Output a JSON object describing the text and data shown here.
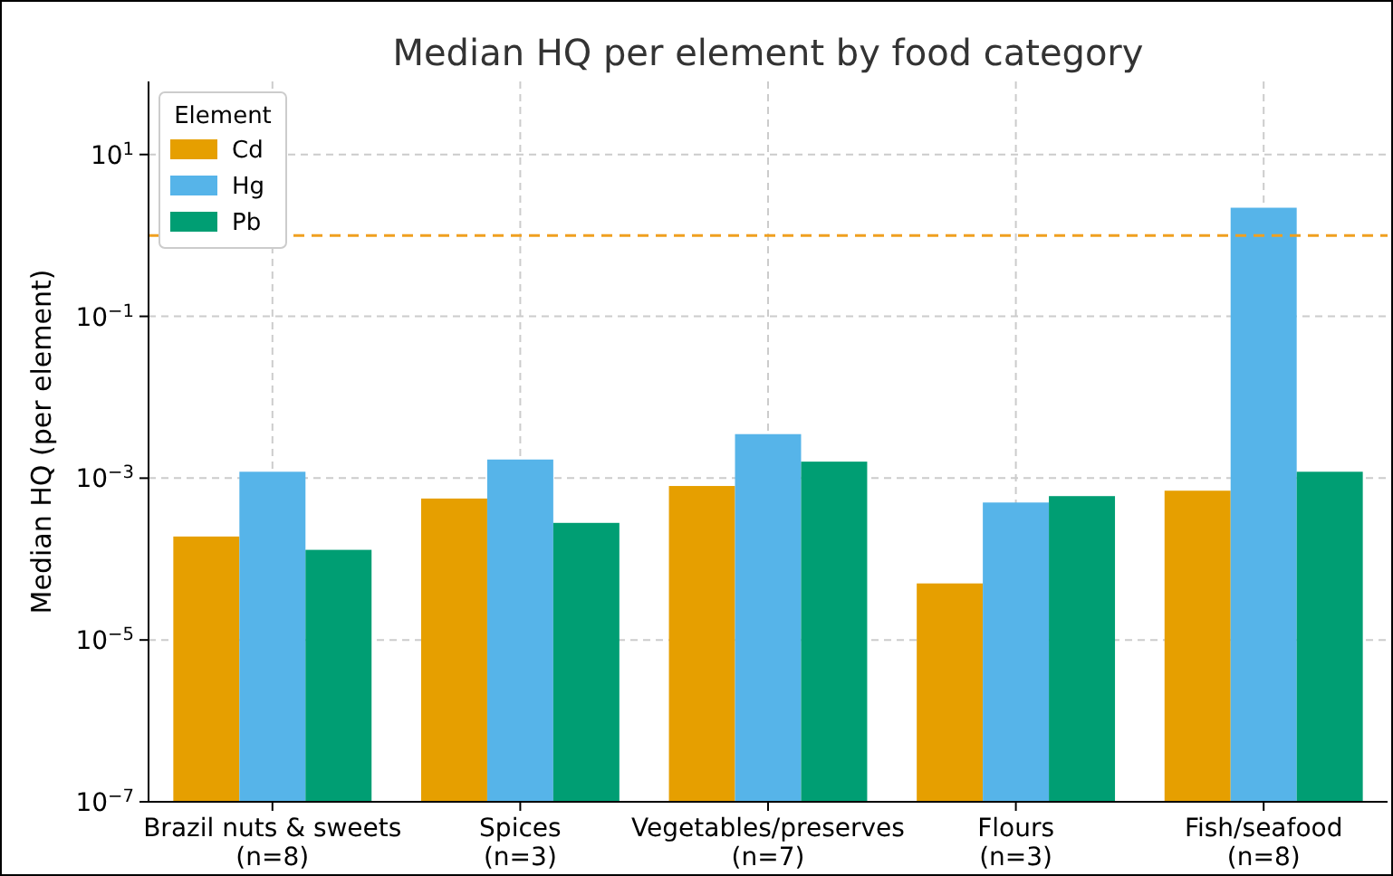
{
  "chart_data": {
    "type": "bar",
    "title": "Median HQ per element by food category",
    "ylabel": "Median HQ (per element)",
    "legend_title": "Element",
    "categories": [
      "Brazil nuts & sweets\n(n=8)",
      "Spices\n(n=3)",
      "Vegetables/preserves\n(n=7)",
      "Flours\n(n=3)",
      "Fish/seafood\n(n=8)"
    ],
    "series": [
      {
        "name": "Cd",
        "color": "#e69f00",
        "values": [
          0.00019,
          0.00056,
          0.0008,
          5e-05,
          0.0007
        ]
      },
      {
        "name": "Hg",
        "color": "#56b4e9",
        "values": [
          0.0012,
          0.0017,
          0.0035,
          0.0005,
          2.2
        ]
      },
      {
        "name": "Pb",
        "color": "#009e73",
        "values": [
          0.00013,
          0.00028,
          0.0016,
          0.0006,
          0.0012
        ]
      }
    ],
    "log": true,
    "ylim": [
      1e-07,
      80
    ],
    "yticks": [
      {
        "value": 1e-07,
        "label": "10$^{−7}$"
      },
      {
        "value": 1e-05,
        "label": "10$^{−5}$"
      },
      {
        "value": 0.001,
        "label": "10$^{−3}$"
      },
      {
        "value": 0.1,
        "label": "10$^{−1}$"
      },
      {
        "value": 10,
        "label": "10$^{1}$"
      }
    ],
    "ref_lines": [
      {
        "axis": "y",
        "value": 1,
        "color": "#f0a020",
        "line_style": "dashed"
      }
    ],
    "grid": true,
    "legend": "top left"
  }
}
